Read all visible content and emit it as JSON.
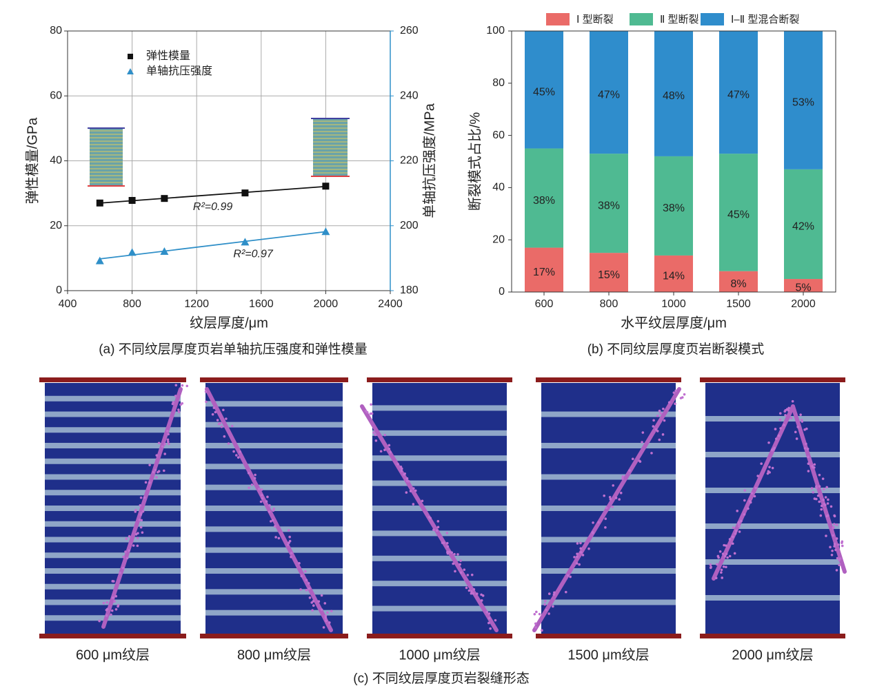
{
  "chart_data": [
    {
      "type": "scatter",
      "caption": "(a) 不同纹层厚度页岩单轴抗压强度和弹性模量",
      "xlabel": "纹层厚度/μm",
      "ylabel": "弹性模量/GPa",
      "y2label": "单轴抗压强度/MPa",
      "x": [
        600,
        800,
        1000,
        1500,
        2000
      ],
      "series": [
        {
          "name": "弹性模量",
          "color": "#111111",
          "marker": "square",
          "values": [
            27,
            27.8,
            28.4,
            30.1,
            32.2
          ],
          "fit_label": "R²=0.99"
        },
        {
          "name": "单轴抗压强度",
          "color": "#2f8fc8",
          "marker": "triangle",
          "axis": "y2",
          "values": [
            189.2,
            191.8,
            192.1,
            195,
            198.2
          ],
          "fit_label": "R²=0.97"
        }
      ],
      "xlim": [
        400,
        2400
      ],
      "xticks": [
        400,
        800,
        1200,
        1600,
        2000,
        2400
      ],
      "ylim": [
        0,
        80
      ],
      "yticks": [
        0,
        20,
        40,
        60,
        80
      ],
      "y2lim": [
        180,
        260
      ],
      "y2ticks": [
        180,
        200,
        220,
        240,
        260
      ],
      "grid": true,
      "legend": "upper-left"
    },
    {
      "type": "stacked-bar",
      "caption": "(b) 不同纹层厚度页岩断裂模式",
      "xlabel": "水平纹层厚度/μm",
      "ylabel": "断裂模式占比/%",
      "categories": [
        "600",
        "800",
        "1000",
        "1500",
        "2000"
      ],
      "series": [
        {
          "name": "Ⅰ 型断裂",
          "color": "#ea6b68",
          "values": [
            17,
            15,
            14,
            8,
            5
          ],
          "value_labels": [
            "17%",
            "15%",
            "14%",
            "8%",
            "5%"
          ]
        },
        {
          "name": "Ⅱ 型断裂",
          "color": "#4fba92",
          "values": [
            38,
            38,
            38,
            45,
            42
          ],
          "value_labels": [
            "38%",
            "38%",
            "38%",
            "45%",
            "42%"
          ]
        },
        {
          "name": "Ⅰ–Ⅱ 型混合断裂",
          "color": "#2f8dcc",
          "values": [
            45,
            47,
            48,
            47,
            53
          ],
          "value_labels": [
            "45%",
            "47%",
            "48%",
            "47%",
            "53%"
          ]
        }
      ],
      "ylim": [
        0,
        100
      ],
      "yticks": [
        0,
        20,
        40,
        60,
        80,
        100
      ],
      "legend": "top"
    }
  ],
  "specimens": {
    "labels": [
      "600 μm纹层",
      "800 μm纹层",
      "1000 μm纹层",
      "1500 μm纹层",
      "2000 μm纹层"
    ],
    "caption": "(c) 不同纹层厚度页岩裂缝形态"
  }
}
